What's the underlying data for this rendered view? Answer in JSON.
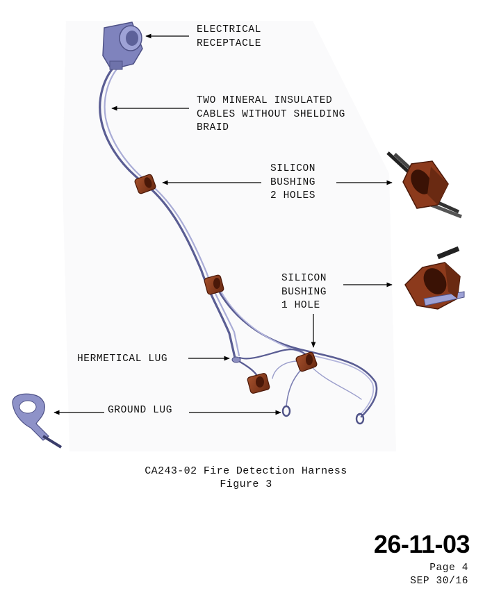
{
  "labels": {
    "receptacle": [
      "ELECTRICAL",
      "RECEPTACLE"
    ],
    "cables": [
      "TWO MINERAL INSULATED",
      "CABLES WITHOUT SHELDING",
      "BRAID"
    ],
    "bushing2": [
      "SILICON",
      "BUSHING",
      "2 HOLES"
    ],
    "bushing1": [
      "SILICON",
      "BUSHING",
      "1 HOLE"
    ],
    "hermetical_lug": "HERMETICAL LUG",
    "ground_lug": "GROUND LUG"
  },
  "caption": {
    "title": "CA243-02 Fire Detection Harness",
    "figure": "Figure 3"
  },
  "footer": {
    "doc_number": "26-11-03",
    "page": "Page 4",
    "date": "SEP 30/16"
  },
  "colors": {
    "cable": "#8d8fc0",
    "cable_dark": "#4f5287",
    "bushing": "#8c3a1c",
    "bushing_dark": "#4a1808",
    "connector": "#8e92c8",
    "arrow": "#000000"
  }
}
